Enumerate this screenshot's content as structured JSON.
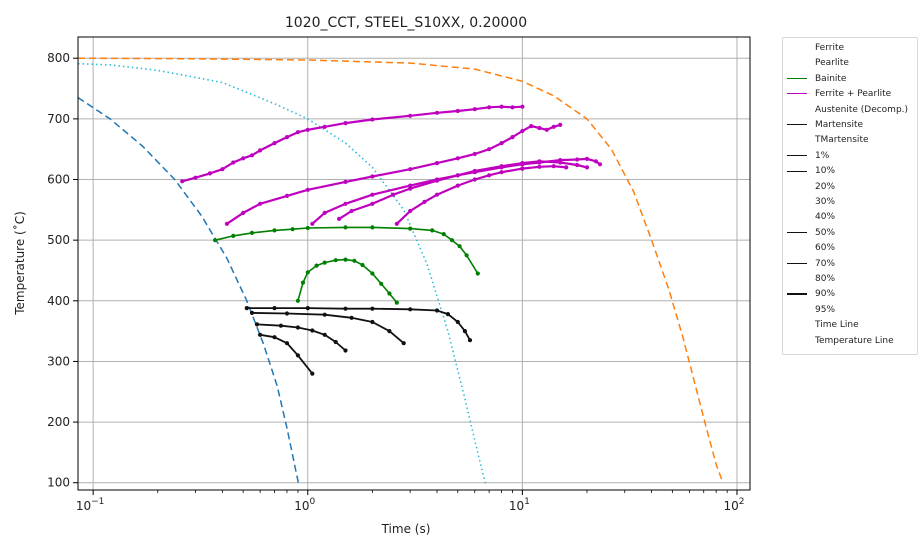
{
  "chart_data": {
    "type": "line",
    "title": "1020_CCT, STEEL_S10XX, 0.20000",
    "xlabel": "Time (s)",
    "ylabel": "Temperature (˚C)",
    "x_scale": "log",
    "xlim": [
      0.085,
      115
    ],
    "ylim": [
      88,
      835
    ],
    "grid": true,
    "legend_position": "outside-right",
    "x_ticks": [
      {
        "value": 0.1,
        "base": "10",
        "exp": "−1"
      },
      {
        "value": 1,
        "base": "10",
        "exp": "0"
      },
      {
        "value": 10,
        "base": "10",
        "exp": "1"
      },
      {
        "value": 100,
        "base": "10",
        "exp": "2"
      }
    ],
    "y_ticks": [
      {
        "value": 100,
        "label": "100"
      },
      {
        "value": 200,
        "label": "200"
      },
      {
        "value": 300,
        "label": "300"
      },
      {
        "value": 400,
        "label": "400"
      },
      {
        "value": 500,
        "label": "500"
      },
      {
        "value": 600,
        "label": "600"
      },
      {
        "value": 700,
        "label": "700"
      },
      {
        "value": 800,
        "label": "800"
      }
    ],
    "legend": [
      {
        "label": "Ferrite",
        "color": "",
        "width": 0
      },
      {
        "label": "Pearlite",
        "color": "",
        "width": 0
      },
      {
        "label": "Bainite",
        "color": "#008000",
        "width": 1.5
      },
      {
        "label": "Ferrite + Pearlite",
        "color": "#bf00bf",
        "width": 1.5
      },
      {
        "label": "Austenite (Decomp.)",
        "color": "",
        "width": 0
      },
      {
        "label": "Martensite",
        "color": "#111111",
        "width": 1.5
      },
      {
        "label": "TMartensite",
        "color": "",
        "width": 0
      },
      {
        "label": "1%",
        "color": "#111111",
        "width": 1.2
      },
      {
        "label": "10%",
        "color": "#111111",
        "width": 1.2
      },
      {
        "label": "20%",
        "color": "",
        "width": 0
      },
      {
        "label": "30%",
        "color": "",
        "width": 0
      },
      {
        "label": "40%",
        "color": "",
        "width": 0
      },
      {
        "label": "50%",
        "color": "#111111",
        "width": 1.2
      },
      {
        "label": "60%",
        "color": "",
        "width": 0
      },
      {
        "label": "70%",
        "color": "#111111",
        "width": 1.2
      },
      {
        "label": "80%",
        "color": "",
        "width": 0
      },
      {
        "label": "90%",
        "color": "#111111",
        "width": 2.2
      },
      {
        "label": "95%",
        "color": "",
        "width": 0
      },
      {
        "label": "Time Line",
        "color": "",
        "width": 0
      },
      {
        "label": "Temperature Line",
        "color": "",
        "width": 0
      }
    ],
    "series": [
      {
        "group": "cooling",
        "color": "#1f77b4",
        "dash": "7,4",
        "width": 1.5,
        "points": [
          [
            0.085,
            735
          ],
          [
            0.12,
            700
          ],
          [
            0.17,
            655
          ],
          [
            0.24,
            600
          ],
          [
            0.32,
            540
          ],
          [
            0.42,
            470
          ],
          [
            0.52,
            400
          ],
          [
            0.62,
            330
          ],
          [
            0.72,
            260
          ],
          [
            0.8,
            190
          ],
          [
            0.88,
            120
          ],
          [
            0.91,
            95
          ]
        ]
      },
      {
        "group": "cooling",
        "color": "#2bbcd8",
        "dash": "1.5,3",
        "width": 1.6,
        "points": [
          [
            0.085,
            791
          ],
          [
            0.12,
            789
          ],
          [
            0.2,
            780
          ],
          [
            0.4,
            760
          ],
          [
            0.7,
            725
          ],
          [
            1,
            700
          ],
          [
            1.5,
            660
          ],
          [
            2,
            620
          ],
          [
            2.8,
            550
          ],
          [
            3.6,
            460
          ],
          [
            4.5,
            350
          ],
          [
            5.3,
            250
          ],
          [
            6.0,
            170
          ],
          [
            6.6,
            110
          ],
          [
            6.8,
            95
          ]
        ]
      },
      {
        "group": "cooling",
        "color": "#ff7f0e",
        "dash": "7,4",
        "width": 1.5,
        "points": [
          [
            0.085,
            800
          ],
          [
            0.3,
            799
          ],
          [
            1,
            797
          ],
          [
            3,
            792
          ],
          [
            6,
            782
          ],
          [
            10,
            762
          ],
          [
            14,
            738
          ],
          [
            20,
            700
          ],
          [
            26,
            650
          ],
          [
            33,
            580
          ],
          [
            40,
            500
          ],
          [
            48,
            420
          ],
          [
            56,
            340
          ],
          [
            64,
            260
          ],
          [
            72,
            190
          ],
          [
            80,
            130
          ],
          [
            86,
            100
          ]
        ]
      },
      {
        "group": "ferrite-pearlite",
        "color": "#bf00bf",
        "width": 2.2,
        "markers": true,
        "points": [
          [
            0.26,
            597
          ],
          [
            0.3,
            603
          ],
          [
            0.35,
            610
          ],
          [
            0.4,
            617
          ],
          [
            0.45,
            628
          ],
          [
            0.5,
            635
          ],
          [
            0.55,
            640
          ],
          [
            0.6,
            648
          ],
          [
            0.7,
            660
          ],
          [
            0.8,
            670
          ],
          [
            0.9,
            678
          ],
          [
            1.0,
            682
          ],
          [
            1.2,
            687
          ],
          [
            1.5,
            693
          ],
          [
            2,
            699
          ],
          [
            3,
            705
          ],
          [
            4,
            710
          ],
          [
            5,
            713
          ],
          [
            6,
            716
          ],
          [
            7,
            719
          ],
          [
            8,
            720
          ],
          [
            9,
            719
          ],
          [
            10,
            720
          ]
        ]
      },
      {
        "group": "ferrite-pearlite",
        "color": "#bf00bf",
        "width": 2.2,
        "markers": true,
        "points": [
          [
            0.42,
            527
          ],
          [
            0.5,
            545
          ],
          [
            0.6,
            560
          ],
          [
            0.8,
            573
          ],
          [
            1,
            583
          ],
          [
            1.5,
            596
          ],
          [
            2,
            605
          ],
          [
            3,
            617
          ],
          [
            4,
            627
          ],
          [
            5,
            635
          ],
          [
            6,
            642
          ],
          [
            7,
            650
          ],
          [
            8,
            660
          ],
          [
            9,
            670
          ],
          [
            10,
            680
          ],
          [
            11,
            688
          ],
          [
            12,
            685
          ],
          [
            13,
            682
          ],
          [
            14,
            687
          ],
          [
            15,
            690
          ]
        ]
      },
      {
        "group": "ferrite-pearlite",
        "color": "#bf00bf",
        "width": 2.2,
        "markers": true,
        "points": [
          [
            1.05,
            527
          ],
          [
            1.2,
            545
          ],
          [
            1.5,
            560
          ],
          [
            2,
            575
          ],
          [
            3,
            590
          ],
          [
            4,
            600
          ],
          [
            5,
            607
          ],
          [
            6,
            612
          ],
          [
            8,
            620
          ],
          [
            10,
            625
          ],
          [
            12,
            628
          ],
          [
            15,
            632
          ],
          [
            18,
            633
          ],
          [
            20,
            634
          ],
          [
            22,
            630
          ],
          [
            23,
            625
          ]
        ]
      },
      {
        "group": "ferrite-pearlite",
        "color": "#bf00bf",
        "width": 2.2,
        "markers": true,
        "points": [
          [
            1.4,
            535
          ],
          [
            1.6,
            548
          ],
          [
            2,
            560
          ],
          [
            2.5,
            575
          ],
          [
            3,
            585
          ],
          [
            4,
            598
          ],
          [
            5,
            607
          ],
          [
            6,
            614
          ],
          [
            8,
            622
          ],
          [
            10,
            627
          ],
          [
            12,
            630
          ],
          [
            15,
            628
          ],
          [
            18,
            624
          ],
          [
            20,
            620
          ]
        ]
      },
      {
        "group": "ferrite-pearlite",
        "color": "#bf00bf",
        "width": 2.2,
        "markers": true,
        "points": [
          [
            2.6,
            527
          ],
          [
            3,
            548
          ],
          [
            3.5,
            563
          ],
          [
            4,
            575
          ],
          [
            5,
            590
          ],
          [
            6,
            600
          ],
          [
            7,
            607
          ],
          [
            8,
            612
          ],
          [
            10,
            618
          ],
          [
            12,
            621
          ],
          [
            14,
            622
          ],
          [
            16,
            620
          ]
        ]
      },
      {
        "group": "bainite",
        "color": "#008000",
        "width": 1.6,
        "markers": true,
        "points": [
          [
            0.37,
            500
          ],
          [
            0.45,
            507
          ],
          [
            0.55,
            512
          ],
          [
            0.7,
            516
          ],
          [
            0.85,
            518
          ],
          [
            1,
            520
          ],
          [
            1.5,
            521
          ],
          [
            2,
            521
          ],
          [
            3,
            519
          ],
          [
            3.8,
            516
          ],
          [
            4.3,
            510
          ],
          [
            4.7,
            500
          ],
          [
            5.1,
            490
          ],
          [
            5.5,
            475
          ],
          [
            6.2,
            445
          ]
        ]
      },
      {
        "group": "bainite",
        "color": "#008000",
        "width": 1.6,
        "markers": true,
        "points": [
          [
            0.9,
            400
          ],
          [
            0.95,
            430
          ],
          [
            1,
            447
          ],
          [
            1.1,
            458
          ],
          [
            1.2,
            463
          ],
          [
            1.35,
            467
          ],
          [
            1.5,
            468
          ],
          [
            1.65,
            466
          ],
          [
            1.8,
            459
          ],
          [
            2.0,
            445
          ],
          [
            2.2,
            428
          ],
          [
            2.4,
            412
          ],
          [
            2.6,
            397
          ]
        ]
      },
      {
        "group": "martensite",
        "color": "#111111",
        "width": 1.8,
        "markers": true,
        "points": [
          [
            0.52,
            388
          ],
          [
            0.7,
            388
          ],
          [
            1,
            388
          ],
          [
            1.5,
            387
          ],
          [
            2,
            387
          ],
          [
            3,
            386
          ],
          [
            4,
            384
          ],
          [
            4.5,
            378
          ],
          [
            5,
            365
          ],
          [
            5.4,
            350
          ],
          [
            5.7,
            335
          ]
        ]
      },
      {
        "group": "martensite",
        "color": "#111111",
        "width": 1.8,
        "markers": true,
        "points": [
          [
            0.55,
            380
          ],
          [
            0.8,
            379
          ],
          [
            1.2,
            377
          ],
          [
            1.6,
            372
          ],
          [
            2,
            365
          ],
          [
            2.4,
            350
          ],
          [
            2.8,
            330
          ]
        ]
      },
      {
        "group": "martensite",
        "color": "#111111",
        "width": 1.8,
        "markers": true,
        "points": [
          [
            0.58,
            361
          ],
          [
            0.75,
            359
          ],
          [
            0.9,
            356
          ],
          [
            1.05,
            351
          ],
          [
            1.2,
            344
          ],
          [
            1.35,
            332
          ],
          [
            1.5,
            318
          ]
        ]
      },
      {
        "group": "martensite",
        "color": "#111111",
        "width": 1.8,
        "markers": true,
        "points": [
          [
            0.6,
            344
          ],
          [
            0.7,
            340
          ],
          [
            0.8,
            330
          ],
          [
            0.9,
            310
          ],
          [
            1.05,
            280
          ]
        ]
      }
    ]
  }
}
